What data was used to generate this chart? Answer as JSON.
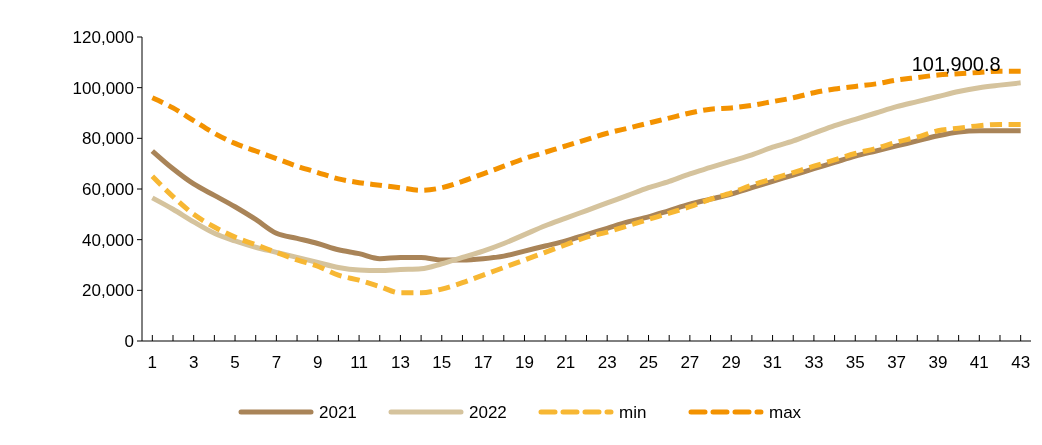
{
  "chart_data": {
    "type": "line",
    "x": [
      1,
      2,
      3,
      4,
      5,
      6,
      7,
      8,
      9,
      10,
      11,
      12,
      13,
      14,
      15,
      16,
      17,
      18,
      19,
      20,
      21,
      22,
      23,
      24,
      25,
      26,
      27,
      28,
      29,
      30,
      31,
      32,
      33,
      34,
      35,
      36,
      37,
      38,
      39,
      40,
      41,
      42,
      43
    ],
    "xlim": [
      0.5,
      43.5
    ],
    "xticks": [
      1,
      {
        "value": 2,
        "label": null
      },
      3,
      {
        "value": 4,
        "label": null
      },
      5,
      {
        "value": 6,
        "label": null
      },
      7,
      {
        "value": 8,
        "label": null
      },
      9,
      {
        "value": 10,
        "label": null
      },
      11,
      {
        "value": 12,
        "label": null
      },
      13,
      {
        "value": 14,
        "label": null
      },
      15,
      {
        "value": 16,
        "label": null
      },
      17,
      {
        "value": 18,
        "label": null
      },
      19,
      {
        "value": 20,
        "label": null
      },
      21,
      {
        "value": 22,
        "label": null
      },
      23,
      {
        "value": 24,
        "label": null
      },
      25,
      {
        "value": 26,
        "label": null
      },
      27,
      {
        "value": 28,
        "label": null
      },
      29,
      {
        "value": 30,
        "label": null
      },
      31,
      {
        "value": 32,
        "label": null
      },
      33,
      {
        "value": 34,
        "label": null
      },
      35,
      {
        "value": 36,
        "label": null
      },
      37,
      {
        "value": 38,
        "label": null
      },
      39,
      {
        "value": 40,
        "label": null
      },
      41,
      {
        "value": 42,
        "label": null
      },
      43
    ],
    "ylim": [
      0,
      120000
    ],
    "yticks": [
      {
        "value": 0,
        "label": "0"
      },
      {
        "value": 20000,
        "label": "20,000"
      },
      {
        "value": 40000,
        "label": "40,000"
      },
      {
        "value": 60000,
        "label": "60,000"
      },
      {
        "value": 80000,
        "label": "80,000"
      },
      {
        "value": 100000,
        "label": "100,000"
      },
      {
        "value": 120000,
        "label": "120,000"
      }
    ],
    "grid": false,
    "legend": "bottom",
    "marker": "none",
    "annotations": [
      {
        "text": "101,900.8",
        "x": 43,
        "y": 101900.8
      }
    ],
    "series": [
      {
        "name": "2021",
        "color": "#a98458",
        "line_style": "solid",
        "values": [
          75000,
          68000,
          62000,
          57500,
          53000,
          48000,
          42500,
          40500,
          38500,
          36000,
          34500,
          32500,
          33000,
          33000,
          32000,
          32000,
          32500,
          33500,
          35500,
          37500,
          39500,
          42000,
          44500,
          47000,
          49000,
          51500,
          54000,
          56000,
          58000,
          60500,
          63000,
          65500,
          68000,
          70500,
          73000,
          75000,
          77000,
          79000,
          81000,
          82500,
          83000,
          83000,
          83000
        ]
      },
      {
        "name": "2022",
        "color": "#d5c39d",
        "line_style": "solid",
        "values": [
          56500,
          52000,
          47000,
          42500,
          39500,
          37000,
          35000,
          33000,
          31000,
          29000,
          28000,
          27800,
          28200,
          28500,
          30500,
          33000,
          35500,
          38500,
          42000,
          45500,
          48500,
          51500,
          54500,
          57500,
          60500,
          63000,
          66000,
          68500,
          71000,
          73500,
          76500,
          79000,
          82000,
          85000,
          87500,
          90000,
          92500,
          94500,
          96500,
          98500,
          100000,
          101000,
          101900.8
        ]
      },
      {
        "name": "min",
        "color": "#f7b733",
        "line_style": "dashed",
        "values": [
          65000,
          57000,
          50000,
          45000,
          41000,
          38000,
          35000,
          32000,
          29500,
          26000,
          24000,
          21500,
          19000,
          19000,
          20500,
          23000,
          26000,
          29000,
          32000,
          35000,
          38000,
          41000,
          43000,
          45500,
          48000,
          50500,
          53000,
          56000,
          58500,
          61500,
          64000,
          66500,
          69000,
          71500,
          74000,
          76000,
          78500,
          80500,
          83000,
          84000,
          85000,
          85500,
          85500
        ]
      },
      {
        "name": "max",
        "color": "#f39200",
        "line_style": "dashed",
        "values": [
          96000,
          92000,
          87000,
          82000,
          78000,
          75000,
          72000,
          69000,
          66500,
          64000,
          62500,
          61500,
          60500,
          59500,
          60500,
          63000,
          66000,
          69000,
          72000,
          74500,
          77000,
          79500,
          82000,
          84000,
          86000,
          88000,
          90000,
          91500,
          92000,
          93000,
          94500,
          96000,
          98000,
          99500,
          100500,
          101500,
          103000,
          104000,
          105000,
          105500,
          106000,
          106500,
          106500
        ]
      }
    ]
  }
}
